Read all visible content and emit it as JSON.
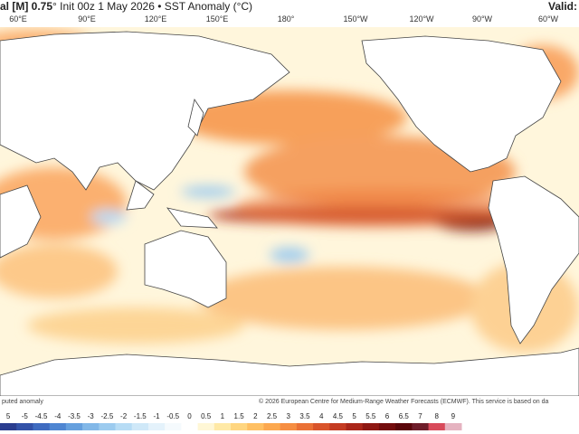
{
  "header": {
    "title_left": "al [M] 0.75",
    "title_rest": "° Init 00z 1 May 2026 • SST Anomaly (°C)",
    "valid": "Valid:"
  },
  "map": {
    "longitude_labels": [
      "60°E",
      "90°E",
      "120°E",
      "150°E",
      "180°",
      "150°W",
      "120°W",
      "90°W",
      "60°W"
    ]
  },
  "footer": {
    "note": "puted anomaly",
    "copyright": "© 2026 European Centre for Medium-Range Weather Forecasts (ECMWF). This service is based on da"
  },
  "legend": {
    "labels": [
      "5",
      "-5",
      "-4.5",
      "-4",
      "-3.5",
      "-3",
      "-2.5",
      "-2",
      "-1.5",
      "-1",
      "-0.5",
      "0",
      "0.5",
      "1",
      "1.5",
      "2",
      "2.5",
      "3",
      "3.5",
      "4",
      "4.5",
      "5",
      "5.5",
      "6",
      "6.5",
      "7",
      "8",
      "9"
    ],
    "colors": [
      "#2a3d8f",
      "#3352a8",
      "#3f6bc0",
      "#4f86d2",
      "#66a0de",
      "#82b8e8",
      "#9ccbef",
      "#b7dcf5",
      "#cfe8f8",
      "#e4f2fb",
      "#f5fafd",
      "#ffffff",
      "#fff7d6",
      "#ffe9a6",
      "#ffd680",
      "#ffc063",
      "#fca84f",
      "#f68e42",
      "#ea7136",
      "#d9542b",
      "#c43b22",
      "#aa2619",
      "#8e1712",
      "#730c0d",
      "#5a060a",
      "#6e1d2a",
      "#d84a5a",
      "#e5b3c0"
    ]
  }
}
